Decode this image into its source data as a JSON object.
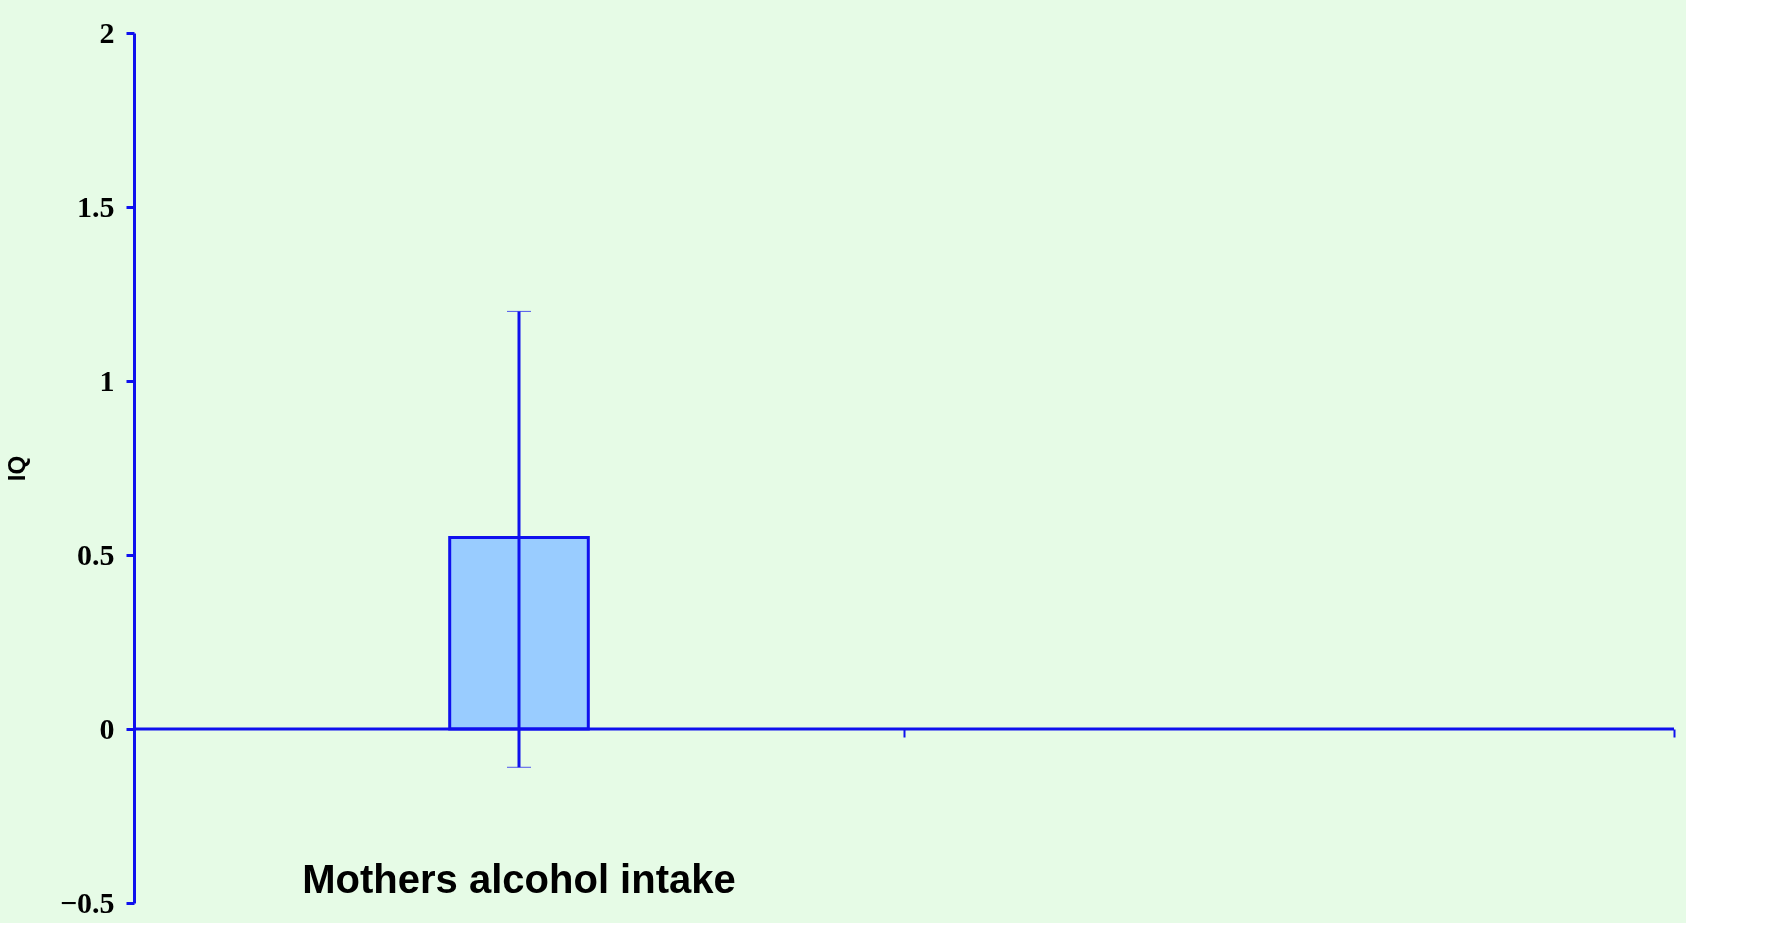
{
  "chart_data": {
    "type": "bar",
    "ylabel": "IQ",
    "categories": [
      "Mothers alcohol intake",
      null
    ],
    "values": [
      0.55,
      null
    ],
    "errors": [
      [
        -0.11,
        1.2
      ],
      null
    ],
    "color": "#99ccff",
    "ref_lines": [
      {
        "axis": "y",
        "value": 0,
        "color": "#1010ee"
      }
    ],
    "ylim": [
      -0.5,
      2
    ],
    "yticks": [
      -0.5,
      0,
      0.5,
      1,
      1.5,
      2
    ]
  }
}
